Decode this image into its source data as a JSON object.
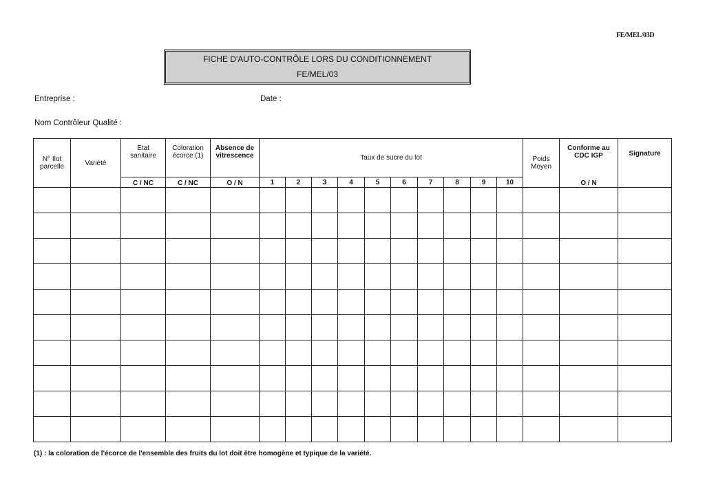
{
  "reference_code": "FE/MEL/03D",
  "title": {
    "line1": "FICHE D'AUTO-CONTRÔLE LORS DU CONDITIONNEMENT",
    "line2": "FE/MEL/03"
  },
  "fields": {
    "entreprise": "Entreprise :",
    "date": "Date :",
    "controleur": "Nom Contrôleur Qualité :"
  },
  "table": {
    "headers": {
      "ilot": {
        "line1": "N° Ilot",
        "line2": "parcelle"
      },
      "variete": "Variété",
      "etat": {
        "line1": "Etat",
        "line2": "sanitaire",
        "code": "C / NC"
      },
      "coloration": {
        "line1": "Coloration",
        "line2": "écorce (1)",
        "code": "C / NC"
      },
      "absence": {
        "line1": "Absence de",
        "line2": "vitrescence",
        "code": "O / N"
      },
      "taux": "Taux de sucre du lot",
      "taux_cols": [
        "1",
        "2",
        "3",
        "4",
        "5",
        "6",
        "7",
        "8",
        "9",
        "10"
      ],
      "poids": {
        "line1": "Poids",
        "line2": "Moyen"
      },
      "conforme": {
        "line1": "Conforme au",
        "line2": "CDC IGP",
        "code": "O / N"
      },
      "signature": "Signature"
    },
    "row_count": 10
  },
  "footnote": "(1) : la coloration de l'écorce de l'ensemble des fruits du lot doit être homogène et typique de la variété."
}
